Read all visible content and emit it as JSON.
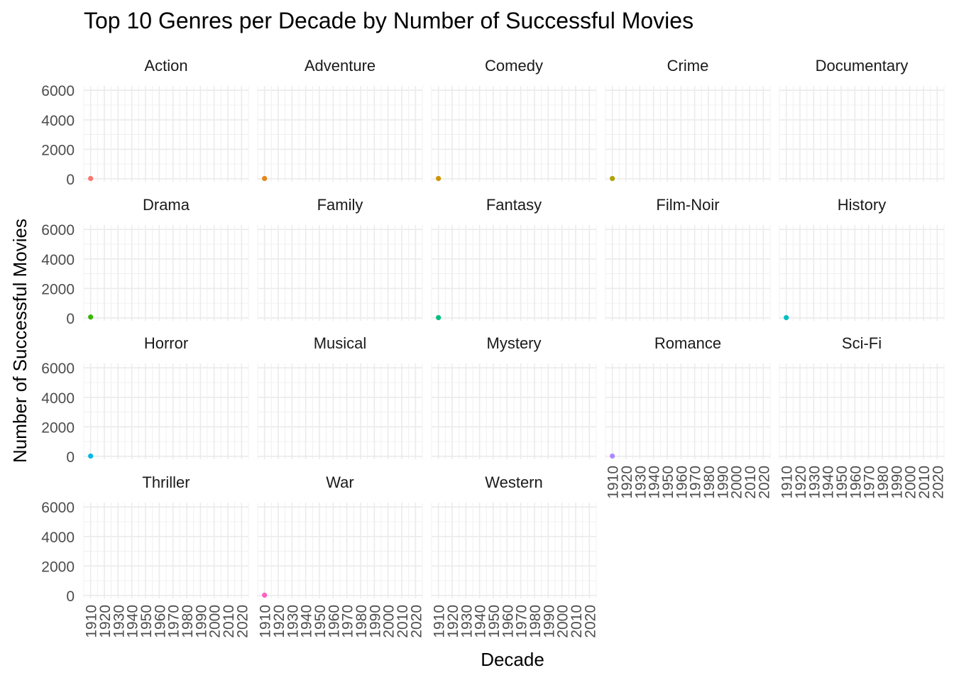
{
  "chart_data": {
    "type": "scatter",
    "title": "Top 10 Genres per Decade by Number of Successful Movies",
    "xlabel": "Decade",
    "ylabel": "Number of Successful Movies",
    "x_ticks": [
      "1910",
      "1920",
      "1930",
      "1940",
      "1950",
      "1960",
      "1970",
      "1980",
      "1990",
      "2000",
      "2010",
      "2020"
    ],
    "y_ticks": [
      "0",
      "2000",
      "4000",
      "6000"
    ],
    "xlim": [
      1905,
      2025
    ],
    "ylim": [
      -200,
      6300
    ],
    "grid": true,
    "facets": [
      {
        "name": "Action",
        "color": "#F8766D",
        "points": [
          {
            "x": 1910,
            "y": 20
          }
        ]
      },
      {
        "name": "Adventure",
        "color": "#E7861B",
        "points": [
          {
            "x": 1910,
            "y": 20
          }
        ]
      },
      {
        "name": "Comedy",
        "color": "#CE9500",
        "points": [
          {
            "x": 1910,
            "y": 20
          }
        ]
      },
      {
        "name": "Crime",
        "color": "#AEA200",
        "points": [
          {
            "x": 1910,
            "y": 20
          }
        ]
      },
      {
        "name": "Documentary",
        "color": "#7FAE00",
        "points": []
      },
      {
        "name": "Drama",
        "color": "#39B600",
        "points": [
          {
            "x": 1910,
            "y": 60
          }
        ]
      },
      {
        "name": "Family",
        "color": "#00BB4E",
        "points": []
      },
      {
        "name": "Fantasy",
        "color": "#00BF7D",
        "points": [
          {
            "x": 1910,
            "y": 20
          }
        ]
      },
      {
        "name": "Film-Noir",
        "color": "#00C1A3",
        "points": []
      },
      {
        "name": "History",
        "color": "#00BFC4",
        "points": [
          {
            "x": 1910,
            "y": 20
          }
        ]
      },
      {
        "name": "Horror",
        "color": "#00B9E3",
        "points": [
          {
            "x": 1910,
            "y": 20
          }
        ]
      },
      {
        "name": "Musical",
        "color": "#00ADFA",
        "points": []
      },
      {
        "name": "Mystery",
        "color": "#619CFF",
        "points": []
      },
      {
        "name": "Romance",
        "color": "#AE87FF",
        "points": [
          {
            "x": 1910,
            "y": 20
          }
        ]
      },
      {
        "name": "Sci-Fi",
        "color": "#DB72FB",
        "points": []
      },
      {
        "name": "Thriller",
        "color": "#F564E3",
        "points": []
      },
      {
        "name": "War",
        "color": "#FF61C3",
        "points": [
          {
            "x": 1910,
            "y": 20
          }
        ]
      },
      {
        "name": "Western",
        "color": "#FF6C91",
        "points": []
      }
    ]
  }
}
